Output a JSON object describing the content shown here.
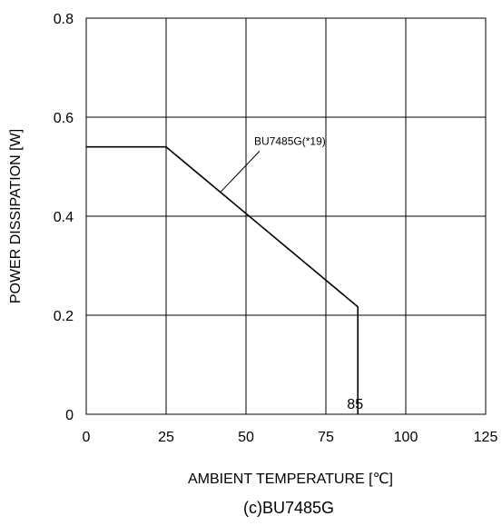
{
  "chart_data": {
    "type": "line",
    "x": [
      0,
      25,
      85,
      85
    ],
    "series": [
      {
        "name": "BU7485G(*19)",
        "values": [
          0.54,
          0.54,
          0.217,
          0
        ]
      }
    ],
    "xlabel": "AMBIENT TEMPERATURE [℃]",
    "ylabel": "POWER DISSIPATION [W]",
    "xlim": [
      0,
      125
    ],
    "ylim": [
      0,
      0.8
    ],
    "xticks": [
      0,
      25,
      50,
      75,
      100,
      125
    ],
    "xtick_labels": [
      "0",
      "25",
      "50",
      "75",
      "100",
      "125"
    ],
    "yticks": [
      0,
      0.2,
      0.4,
      0.6,
      0.8
    ],
    "ytick_labels": [
      "0",
      "0.2",
      "0.4",
      "0.6",
      "0.8"
    ],
    "grid": true,
    "annotations": [
      {
        "text": "85",
        "x": 85,
        "y": 0
      },
      {
        "text": "BU7485G(*19)",
        "x": 52,
        "y": 0.55
      }
    ],
    "caption": "(c)BU7485G",
    "colors": {
      "line": "#000000",
      "grid": "#000000",
      "background": "#ffffff"
    }
  }
}
